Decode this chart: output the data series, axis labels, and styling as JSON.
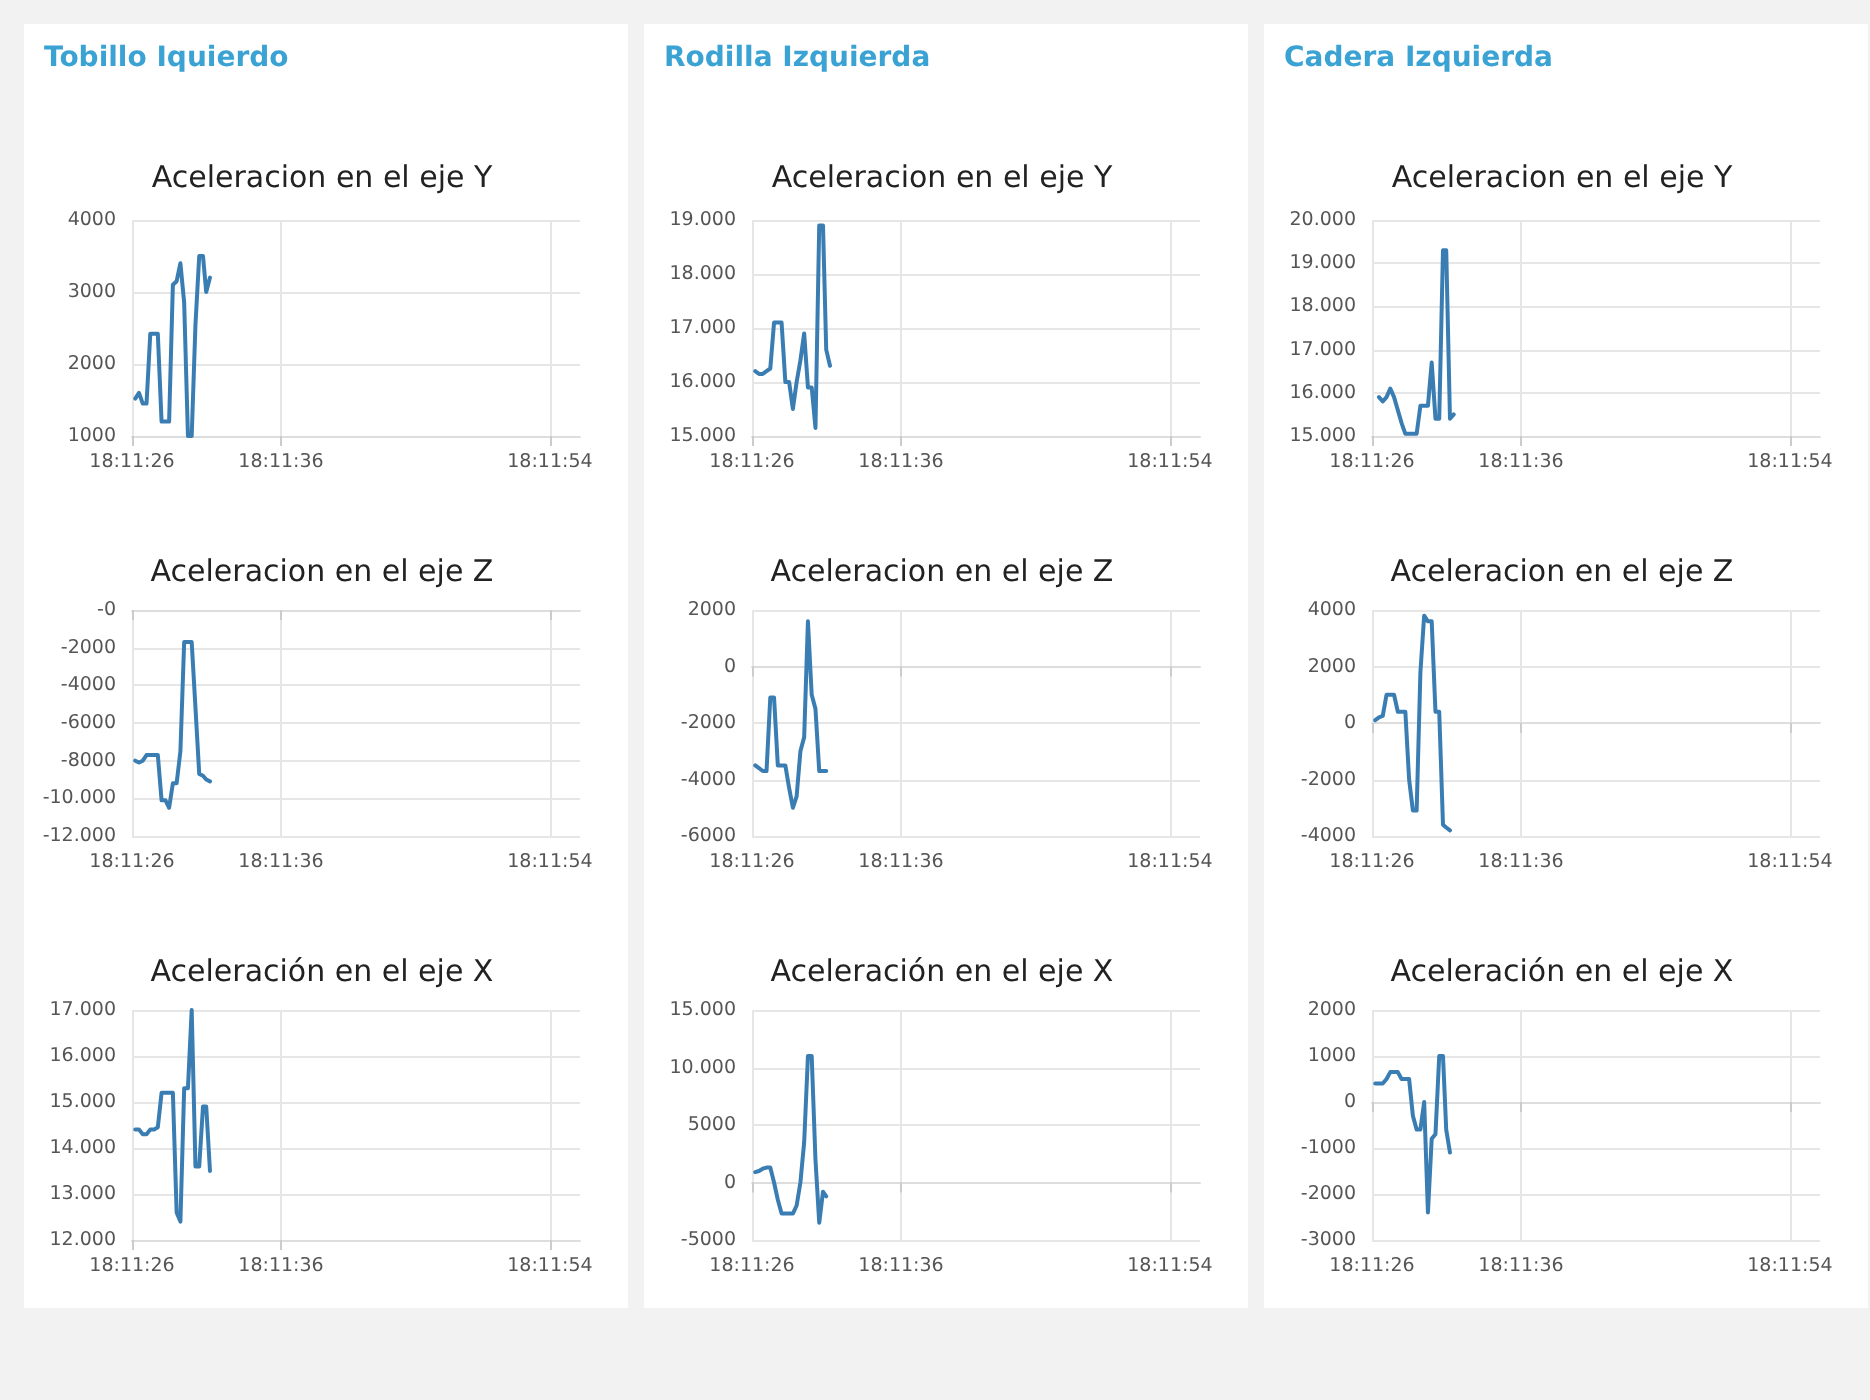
{
  "chart_data": [
    {
      "type": "line",
      "title": "Aceleracion en el eje Y",
      "annotations": [
        "Tobillo Iquierdo"
      ],
      "color": "#3a7db3",
      "grid": true,
      "x": [
        18.19062,
        18.19069,
        18.19076,
        18.19083,
        18.1909,
        18.19097,
        18.19104,
        18.19111,
        18.19118,
        18.19125,
        18.19132,
        18.19139,
        18.19146,
        18.19153,
        18.1916,
        18.19167,
        18.19174,
        18.19181,
        18.19188,
        18.19194,
        18.19201
      ],
      "values": [
        1520,
        1600,
        1450,
        1450,
        2420,
        2420,
        2420,
        1200,
        1200,
        1200,
        3100,
        3150,
        3400,
        2850,
        1000,
        1000,
        2550,
        3500,
        3500,
        3000,
        3200
      ],
      "xlim": [
        18.19056,
        18.19889
      ],
      "xticks": [
        {
          "value": 18.19056,
          "label": "18:11:26"
        },
        {
          "value": 18.19333,
          "label": "18:11:36"
        },
        {
          "value": 18.19833,
          "label": "18:11:54"
        }
      ],
      "ylim": [
        1000,
        4000
      ],
      "yticks": [
        1000,
        2000,
        3000,
        4000
      ]
    },
    {
      "type": "line",
      "title": "Aceleracion en el eje Y",
      "annotations": [
        "Rodilla Izquierda"
      ],
      "color": "#3a7db3",
      "grid": true,
      "x": [
        18.19062,
        18.19069,
        18.19076,
        18.19083,
        18.1909,
        18.19097,
        18.19104,
        18.19111,
        18.19118,
        18.19125,
        18.19132,
        18.19139,
        18.19146,
        18.19153,
        18.1916,
        18.19167,
        18.19174,
        18.19181,
        18.19188,
        18.19194,
        18.19201
      ],
      "values": [
        16200,
        16150,
        16150,
        16200,
        16250,
        17100,
        17100,
        17100,
        16000,
        16000,
        15500,
        16000,
        16400,
        16900,
        15900,
        15900,
        15150,
        18900,
        18900,
        16600,
        16300
      ],
      "xlim": [
        18.19056,
        18.19889
      ],
      "xticks": [
        {
          "value": 18.19056,
          "label": "18:11:26"
        },
        {
          "value": 18.19333,
          "label": "18:11:36"
        },
        {
          "value": 18.19833,
          "label": "18:11:54"
        }
      ],
      "ylim": [
        15000,
        19000
      ],
      "yticks": [
        {
          "value": 15000,
          "label": "15.000"
        },
        {
          "value": 16000,
          "label": "16.000"
        },
        {
          "value": 17000,
          "label": "17.000"
        },
        {
          "value": 18000,
          "label": "18.000"
        },
        {
          "value": 19000,
          "label": "19.000"
        }
      ]
    },
    {
      "type": "line",
      "title": "Aceleracion en el eje Y",
      "annotations": [
        "Cadera Izquierda"
      ],
      "color": "#3a7db3",
      "grid": true,
      "x": [
        18.19069,
        18.19076,
        18.19083,
        18.1909,
        18.19097,
        18.19104,
        18.19111,
        18.19118,
        18.19125,
        18.19132,
        18.19139,
        18.19146,
        18.19153,
        18.1916,
        18.19167,
        18.19174,
        18.19181,
        18.19188,
        18.19194,
        18.19201,
        18.19208
      ],
      "values": [
        15900,
        15800,
        15900,
        16100,
        15900,
        15600,
        15300,
        15050,
        15050,
        15050,
        15050,
        15700,
        15700,
        15700,
        16700,
        15400,
        15400,
        19300,
        19300,
        15400,
        15500
      ],
      "xlim": [
        18.19056,
        18.19889
      ],
      "xticks": [
        {
          "value": 18.19056,
          "label": "18:11:26"
        },
        {
          "value": 18.19333,
          "label": "18:11:36"
        },
        {
          "value": 18.19833,
          "label": "18:11:54"
        }
      ],
      "ylim": [
        15000,
        20000
      ],
      "yticks": [
        {
          "value": 15000,
          "label": "15.000"
        },
        {
          "value": 16000,
          "label": "16.000"
        },
        {
          "value": 17000,
          "label": "17.000"
        },
        {
          "value": 18000,
          "label": "18.000"
        },
        {
          "value": 19000,
          "label": "19.000"
        },
        {
          "value": 20000,
          "label": "20.000"
        }
      ]
    },
    {
      "type": "line",
      "title": "Aceleracion en el eje Z",
      "color": "#3a7db3",
      "grid": true,
      "x": [
        18.19062,
        18.19069,
        18.19076,
        18.19083,
        18.1909,
        18.19097,
        18.19104,
        18.19111,
        18.19118,
        18.19125,
        18.19132,
        18.19139,
        18.19146,
        18.19153,
        18.1916,
        18.19167,
        18.19174,
        18.19181,
        18.19188,
        18.19194,
        18.19201
      ],
      "values": [
        -8000,
        -8100,
        -8000,
        -7700,
        -7700,
        -7700,
        -7700,
        -10100,
        -10100,
        -10500,
        -9200,
        -9200,
        -7500,
        -1700,
        -1700,
        -1700,
        -5200,
        -8700,
        -8800,
        -9000,
        -9100
      ],
      "xlim": [
        18.19056,
        18.19889
      ],
      "xticks": [
        {
          "value": 18.19056,
          "label": "18:11:26"
        },
        {
          "value": 18.19333,
          "label": "18:11:36"
        },
        {
          "value": 18.19833,
          "label": "18:11:54"
        }
      ],
      "ylim": [
        -12000,
        0
      ],
      "yticks": [
        {
          "value": -12000,
          "label": "-12.000"
        },
        {
          "value": -10000,
          "label": "-10.000"
        },
        -8000,
        -6000,
        -4000,
        -2000,
        {
          "value": 0,
          "label": "-0"
        }
      ]
    },
    {
      "type": "line",
      "title": "Aceleracion en el eje Z",
      "color": "#3a7db3",
      "grid": true,
      "x": [
        18.19062,
        18.19069,
        18.19076,
        18.19083,
        18.1909,
        18.19097,
        18.19104,
        18.19111,
        18.19118,
        18.19125,
        18.19132,
        18.19139,
        18.19146,
        18.19153,
        18.1916,
        18.19167,
        18.19174,
        18.19181,
        18.19188,
        18.19194
      ],
      "values": [
        -3500,
        -3600,
        -3700,
        -3700,
        -1100,
        -1100,
        -3500,
        -3500,
        -3500,
        -4300,
        -5000,
        -4600,
        -3000,
        -2500,
        1600,
        -1000,
        -1500,
        -3700,
        -3700,
        -3700
      ],
      "xlim": [
        18.19056,
        18.19889
      ],
      "xticks": [
        {
          "value": 18.19056,
          "label": "18:11:26"
        },
        {
          "value": 18.19333,
          "label": "18:11:36"
        },
        {
          "value": 18.19833,
          "label": "18:11:54"
        }
      ],
      "ylim": [
        -6000,
        2000
      ],
      "yticks": [
        -6000,
        -4000,
        -2000,
        0,
        2000
      ]
    },
    {
      "type": "line",
      "title": "Aceleracion en el eje Z",
      "color": "#3a7db3",
      "grid": true,
      "x": [
        18.19062,
        18.19069,
        18.19076,
        18.19083,
        18.1909,
        18.19097,
        18.19104,
        18.19111,
        18.19118,
        18.19125,
        18.19132,
        18.19139,
        18.19146,
        18.19153,
        18.1916,
        18.19167,
        18.19174,
        18.19181,
        18.19188,
        18.19194,
        18.19201
      ],
      "values": [
        100,
        200,
        250,
        1000,
        1000,
        1000,
        400,
        400,
        400,
        -2000,
        -3100,
        -3100,
        1800,
        3800,
        3600,
        3600,
        400,
        400,
        -3600,
        -3700,
        -3800
      ],
      "xlim": [
        18.19056,
        18.19889
      ],
      "xticks": [
        {
          "value": 18.19056,
          "label": "18:11:26"
        },
        {
          "value": 18.19333,
          "label": "18:11:36"
        },
        {
          "value": 18.19833,
          "label": "18:11:54"
        }
      ],
      "ylim": [
        -4000,
        4000
      ],
      "yticks": [
        -4000,
        -2000,
        0,
        2000,
        4000
      ]
    },
    {
      "type": "line",
      "title": "Aceleración en el eje X",
      "color": "#3a7db3",
      "grid": true,
      "x": [
        18.19062,
        18.19069,
        18.19076,
        18.19083,
        18.1909,
        18.19097,
        18.19104,
        18.19111,
        18.19118,
        18.19125,
        18.19132,
        18.19139,
        18.19146,
        18.19153,
        18.1916,
        18.19167,
        18.19174,
        18.19181,
        18.19188,
        18.19194,
        18.19201
      ],
      "values": [
        14400,
        14400,
        14300,
        14300,
        14400,
        14400,
        14450,
        15200,
        15200,
        15200,
        15200,
        12600,
        12400,
        15300,
        15300,
        17000,
        13600,
        13600,
        14900,
        14900,
        13500
      ],
      "xlim": [
        18.19056,
        18.19889
      ],
      "xticks": [
        {
          "value": 18.19056,
          "label": "18:11:26"
        },
        {
          "value": 18.19333,
          "label": "18:11:36"
        },
        {
          "value": 18.19833,
          "label": "18:11:54"
        }
      ],
      "ylim": [
        12000,
        17000
      ],
      "yticks": [
        {
          "value": 12000,
          "label": "12.000"
        },
        {
          "value": 13000,
          "label": "13.000"
        },
        {
          "value": 14000,
          "label": "14.000"
        },
        {
          "value": 15000,
          "label": "15.000"
        },
        {
          "value": 16000,
          "label": "16.000"
        },
        {
          "value": 17000,
          "label": "17.000"
        }
      ]
    },
    {
      "type": "line",
      "title": "Aceleración en el eje X",
      "color": "#3a7db3",
      "grid": true,
      "x": [
        18.19062,
        18.19069,
        18.19076,
        18.19083,
        18.1909,
        18.19097,
        18.19104,
        18.19111,
        18.19118,
        18.19125,
        18.19132,
        18.19139,
        18.19146,
        18.19153,
        18.1916,
        18.19167,
        18.19174,
        18.19181,
        18.19188,
        18.19194
      ],
      "values": [
        900,
        1000,
        1200,
        1300,
        1300,
        0,
        -1500,
        -2700,
        -2700,
        -2700,
        -2700,
        -2000,
        0,
        3500,
        11000,
        11000,
        2000,
        -3500,
        -800,
        -1200
      ],
      "xlim": [
        18.19056,
        18.19889
      ],
      "xticks": [
        {
          "value": 18.19056,
          "label": "18:11:26"
        },
        {
          "value": 18.19333,
          "label": "18:11:36"
        },
        {
          "value": 18.19833,
          "label": "18:11:54"
        }
      ],
      "ylim": [
        -5000,
        15000
      ],
      "yticks": [
        -5000,
        0,
        5000,
        {
          "value": 10000,
          "label": "10.000"
        },
        {
          "value": 15000,
          "label": "15.000"
        }
      ]
    },
    {
      "type": "line",
      "title": "Aceleración en el eje X",
      "color": "#3a7db3",
      "grid": true,
      "x": [
        18.19062,
        18.19069,
        18.19076,
        18.19083,
        18.1909,
        18.19097,
        18.19104,
        18.19111,
        18.19118,
        18.19125,
        18.19132,
        18.19139,
        18.19146,
        18.19153,
        18.1916,
        18.19167,
        18.19174,
        18.19181,
        18.19188,
        18.19194,
        18.19201
      ],
      "values": [
        400,
        400,
        400,
        500,
        650,
        650,
        650,
        500,
        500,
        500,
        -300,
        -600,
        -600,
        0,
        -2400,
        -800,
        -700,
        1000,
        1000,
        -600,
        -1100
      ],
      "xlim": [
        18.19056,
        18.19889
      ],
      "xticks": [
        {
          "value": 18.19056,
          "label": "18:11:26"
        },
        {
          "value": 18.19333,
          "label": "18:11:36"
        },
        {
          "value": 18.19833,
          "label": "18:11:54"
        }
      ],
      "ylim": [
        -3000,
        2000
      ],
      "yticks": [
        -3000,
        -2000,
        -1000,
        0,
        1000,
        2000
      ]
    }
  ]
}
